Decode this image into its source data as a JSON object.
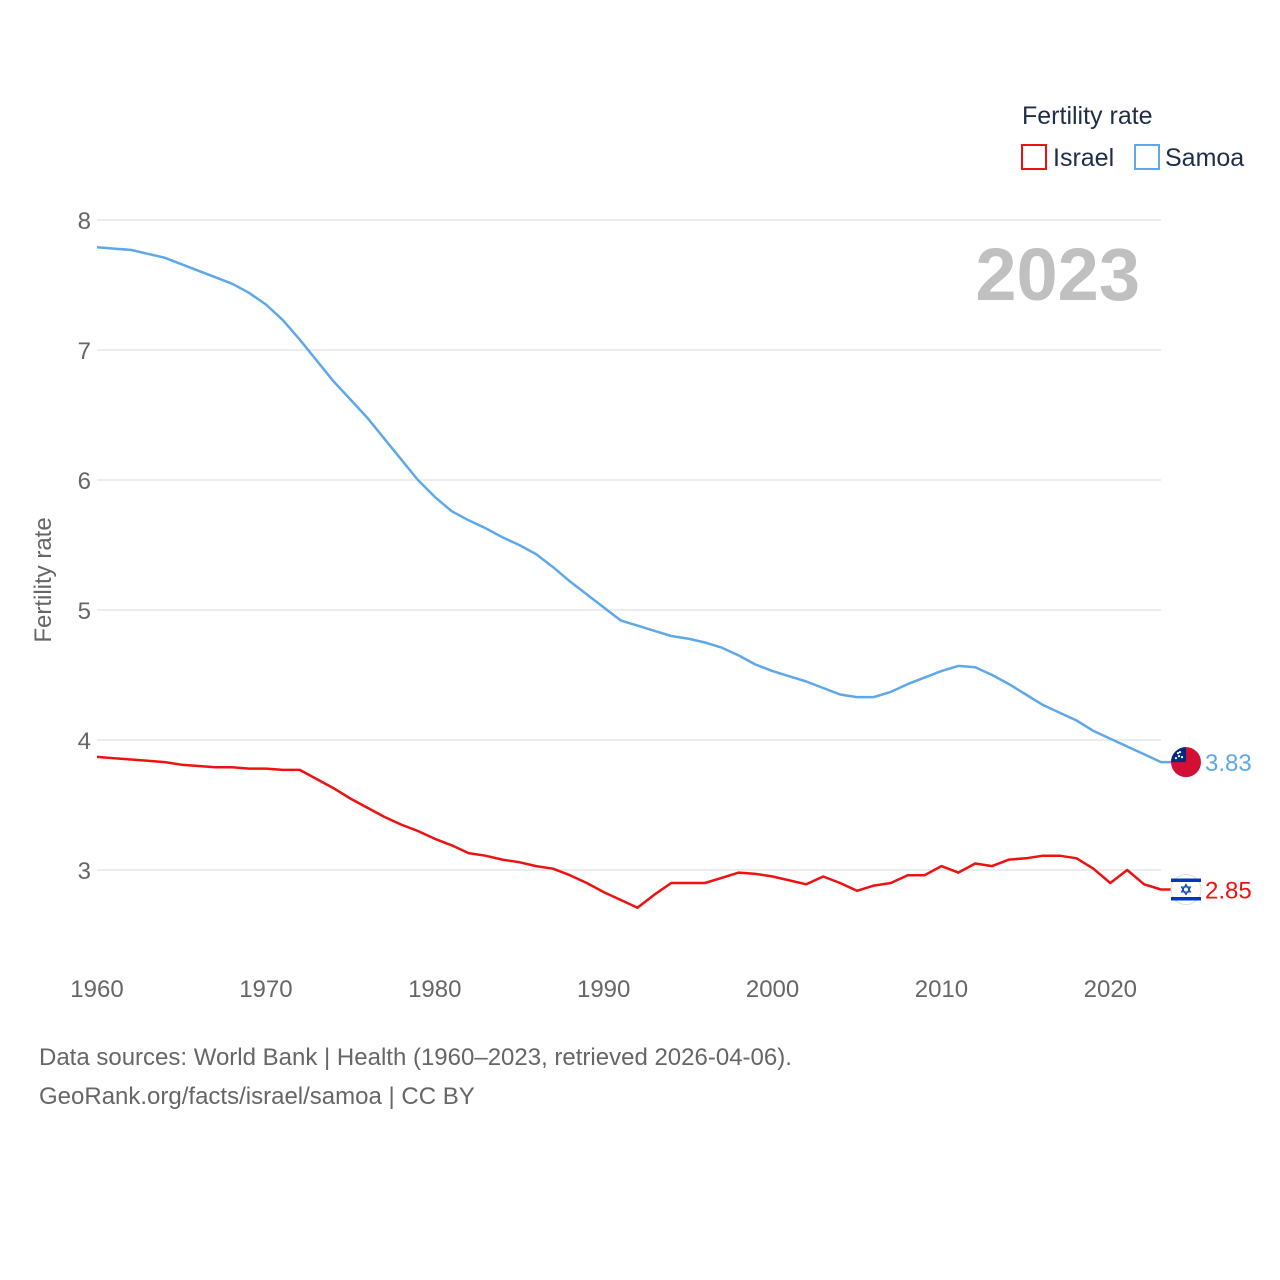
{
  "chart_data": {
    "type": "line",
    "year_label": "2023",
    "ylabel": "Fertility rate",
    "xlabel": "",
    "xlim": [
      1960,
      2023
    ],
    "ylim": [
      2.5,
      8.1
    ],
    "yticks": [
      3,
      4,
      5,
      6,
      7,
      8
    ],
    "xticks": [
      1960,
      1970,
      1980,
      1990,
      2000,
      2010,
      2020
    ],
    "legend": {
      "title": "Fertility rate",
      "position": "top-right"
    },
    "x": [
      1960,
      1961,
      1962,
      1963,
      1964,
      1965,
      1966,
      1967,
      1968,
      1969,
      1970,
      1971,
      1972,
      1973,
      1974,
      1975,
      1976,
      1977,
      1978,
      1979,
      1980,
      1981,
      1982,
      1983,
      1984,
      1985,
      1986,
      1987,
      1988,
      1989,
      1990,
      1991,
      1992,
      1993,
      1994,
      1995,
      1996,
      1997,
      1998,
      1999,
      2000,
      2001,
      2002,
      2003,
      2004,
      2005,
      2006,
      2007,
      2008,
      2009,
      2010,
      2011,
      2012,
      2013,
      2014,
      2015,
      2016,
      2017,
      2018,
      2019,
      2020,
      2021,
      2022,
      2023
    ],
    "series": [
      {
        "name": "Israel",
        "color": "#ee1111",
        "end_label": "2.85",
        "flag": "israel-flag",
        "values": [
          3.87,
          3.86,
          3.85,
          3.84,
          3.83,
          3.81,
          3.8,
          3.79,
          3.79,
          3.78,
          3.78,
          3.77,
          3.77,
          3.7,
          3.63,
          3.55,
          3.48,
          3.41,
          3.35,
          3.3,
          3.24,
          3.19,
          3.13,
          3.11,
          3.08,
          3.06,
          3.03,
          3.01,
          2.96,
          2.9,
          2.83,
          2.77,
          2.71,
          2.81,
          2.9,
          2.9,
          2.9,
          2.94,
          2.98,
          2.97,
          2.95,
          2.92,
          2.89,
          2.95,
          2.9,
          2.84,
          2.88,
          2.9,
          2.96,
          2.96,
          3.03,
          2.98,
          3.05,
          3.03,
          3.08,
          3.09,
          3.11,
          3.11,
          3.09,
          3.01,
          2.9,
          3.0,
          2.89,
          2.85
        ]
      },
      {
        "name": "Samoa",
        "color": "#5fa8e8",
        "end_label": "3.83",
        "flag": "samoa-flag",
        "values": [
          7.79,
          7.78,
          7.77,
          7.74,
          7.71,
          7.66,
          7.61,
          7.56,
          7.51,
          7.44,
          7.35,
          7.23,
          7.08,
          6.92,
          6.76,
          6.62,
          6.48,
          6.32,
          6.16,
          6.0,
          5.87,
          5.76,
          5.69,
          5.63,
          5.56,
          5.5,
          5.43,
          5.33,
          5.22,
          5.12,
          5.02,
          4.92,
          4.88,
          4.84,
          4.8,
          4.78,
          4.75,
          4.71,
          4.65,
          4.58,
          4.53,
          4.49,
          4.45,
          4.4,
          4.35,
          4.33,
          4.33,
          4.37,
          4.43,
          4.48,
          4.53,
          4.57,
          4.56,
          4.5,
          4.43,
          4.35,
          4.27,
          4.21,
          4.15,
          4.07,
          4.01,
          3.95,
          3.89,
          3.83
        ]
      }
    ]
  },
  "footer": {
    "line1": "Data sources: World Bank | Health (1960–2023, retrieved 2026-04-06).",
    "line2": "GeoRank.org/facts/israel/samoa | CC BY"
  }
}
